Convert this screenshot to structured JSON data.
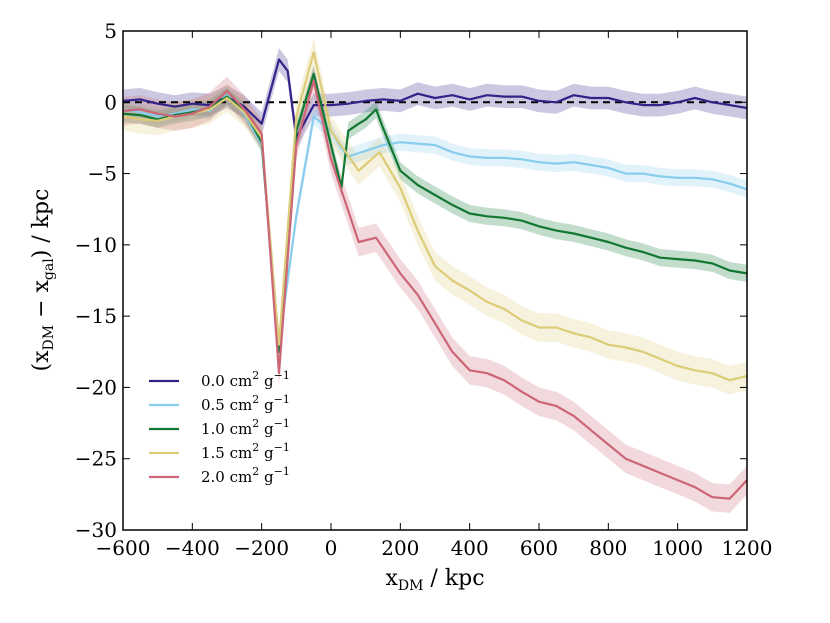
{
  "chart_data": {
    "type": "line",
    "title": "",
    "xlabel": "x_DM / kpc",
    "ylabel": "(x_DM − x_gal) / kpc",
    "xlabel_parts": {
      "main": "x",
      "sub": "DM",
      "unit": " / kpc"
    },
    "ylabel_parts": {
      "open": "(x",
      "sub1": "DM",
      "mid": " − x",
      "sub2": "gal",
      "close": ") / kpc"
    },
    "xlim": [
      -600,
      1200
    ],
    "ylim": [
      -30,
      5
    ],
    "xticks": [
      -600,
      -400,
      -200,
      0,
      200,
      400,
      600,
      800,
      1000,
      1200
    ],
    "yticks": [
      5,
      0,
      -5,
      -10,
      -15,
      -20,
      -25,
      -30
    ],
    "xtick_labels": [
      "−600",
      "−400",
      "−200",
      "0",
      "200",
      "400",
      "600",
      "800",
      "1000",
      "1200"
    ],
    "ytick_labels": [
      "5",
      "0",
      "−5",
      "−10",
      "−15",
      "−20",
      "−25",
      "−30"
    ],
    "reference_line": {
      "y": 0,
      "style": "dashed",
      "color": "#000000"
    },
    "legend_position": "lower-left",
    "legend_unit": {
      "number_suffix": " cm",
      "sup1": "2",
      "g": " g",
      "sup2": "−1"
    },
    "series": [
      {
        "name": "0.0 cm² g⁻¹",
        "number": "0.0",
        "color": "#332288",
        "band_half_width": 0.8,
        "x": [
          -600,
          -550,
          -500,
          -450,
          -400,
          -350,
          -300,
          -250,
          -200,
          -150,
          -125,
          -100,
          -50,
          0,
          50,
          100,
          150,
          200,
          250,
          300,
          350,
          400,
          450,
          500,
          550,
          600,
          650,
          700,
          750,
          800,
          850,
          900,
          950,
          1000,
          1050,
          1100,
          1150,
          1200
        ],
        "y": [
          0.1,
          0.2,
          -0.1,
          -0.3,
          -0.1,
          -0.2,
          0.4,
          -0.3,
          -1.5,
          3.0,
          2.2,
          -2.5,
          -0.2,
          -0.2,
          -0.1,
          0.1,
          0.2,
          0.1,
          0.6,
          0.3,
          0.5,
          0.2,
          0.5,
          0.4,
          0.4,
          0.1,
          0.0,
          0.5,
          0.3,
          0.3,
          0.0,
          -0.2,
          -0.2,
          0.0,
          0.3,
          0.0,
          -0.2,
          -0.4
        ]
      },
      {
        "name": "0.5 cm² g⁻¹",
        "number": "0.5",
        "color": "#88CCEE",
        "band_half_width": 0.6,
        "x": [
          -600,
          -550,
          -500,
          -450,
          -400,
          -350,
          -300,
          -250,
          -200,
          -150,
          -100,
          -50,
          0,
          30,
          50,
          100,
          150,
          200,
          250,
          300,
          350,
          400,
          450,
          500,
          550,
          600,
          650,
          700,
          750,
          800,
          850,
          900,
          950,
          1000,
          1050,
          1100,
          1150,
          1200
        ],
        "y": [
          -0.5,
          -0.7,
          -1.0,
          -0.8,
          -0.5,
          -0.6,
          0.5,
          -0.8,
          -3.0,
          -17.0,
          -8.0,
          -1.0,
          -2.0,
          -3.2,
          -3.8,
          -3.4,
          -3.0,
          -2.8,
          -2.9,
          -3.0,
          -3.5,
          -3.8,
          -3.9,
          -3.9,
          -4.0,
          -4.2,
          -4.3,
          -4.2,
          -4.4,
          -4.6,
          -5.0,
          -5.0,
          -5.2,
          -5.3,
          -5.3,
          -5.4,
          -5.7,
          -6.1
        ]
      },
      {
        "name": "1.0 cm² g⁻¹",
        "number": "1.0",
        "color": "#117733",
        "band_half_width": 0.6,
        "x": [
          -600,
          -550,
          -500,
          -450,
          -400,
          -350,
          -300,
          -250,
          -200,
          -150,
          -100,
          -50,
          0,
          30,
          50,
          80,
          100,
          130,
          150,
          200,
          250,
          300,
          350,
          400,
          450,
          500,
          550,
          600,
          650,
          700,
          750,
          800,
          850,
          900,
          950,
          1000,
          1050,
          1100,
          1150,
          1200
        ],
        "y": [
          -0.8,
          -0.9,
          -1.2,
          -0.9,
          -0.7,
          -0.4,
          0.4,
          -0.6,
          -2.8,
          -17.5,
          -2.0,
          2.0,
          -3.0,
          -6.0,
          -2.0,
          -1.5,
          -1.2,
          -0.5,
          -1.8,
          -4.8,
          -5.8,
          -6.5,
          -7.2,
          -7.8,
          -8.0,
          -8.1,
          -8.3,
          -8.7,
          -9.0,
          -9.2,
          -9.5,
          -9.8,
          -10.2,
          -10.5,
          -10.9,
          -11.0,
          -11.1,
          -11.3,
          -11.8,
          -12.0
        ]
      },
      {
        "name": "1.5 cm² g⁻¹",
        "number": "1.5",
        "color": "#DDCC77",
        "band_half_width": 1.0,
        "x": [
          -600,
          -550,
          -500,
          -450,
          -400,
          -350,
          -300,
          -250,
          -200,
          -150,
          -100,
          -50,
          0,
          80,
          140,
          200,
          250,
          300,
          350,
          400,
          450,
          500,
          550,
          600,
          650,
          700,
          750,
          800,
          850,
          900,
          950,
          1000,
          1050,
          1100,
          1150,
          1200
        ],
        "y": [
          -1.0,
          -1.2,
          -1.3,
          -1.0,
          -0.8,
          -0.5,
          0.3,
          -0.7,
          -2.5,
          -17.0,
          -1.0,
          3.5,
          -2.0,
          -4.8,
          -3.5,
          -6.0,
          -9.0,
          -11.5,
          -12.5,
          -13.2,
          -14.0,
          -14.5,
          -15.3,
          -15.8,
          -15.8,
          -16.2,
          -16.5,
          -17.0,
          -17.2,
          -17.5,
          -18.0,
          -18.5,
          -18.8,
          -19.0,
          -19.5,
          -19.2
        ]
      },
      {
        "name": "2.0 cm² g⁻¹",
        "number": "2.0",
        "color": "#CC6677",
        "band_half_width": 1.0,
        "x": [
          -600,
          -550,
          -500,
          -450,
          -400,
          -350,
          -300,
          -250,
          -200,
          -150,
          -100,
          -50,
          0,
          80,
          130,
          200,
          250,
          300,
          350,
          400,
          450,
          500,
          550,
          600,
          650,
          700,
          750,
          800,
          850,
          900,
          950,
          1000,
          1050,
          1100,
          1150,
          1200
        ],
        "y": [
          -0.6,
          -0.5,
          -0.8,
          -1.0,
          -0.8,
          -0.3,
          0.8,
          -0.5,
          -2.2,
          -19.0,
          -3.0,
          1.5,
          -4.0,
          -9.8,
          -9.5,
          -12.0,
          -13.5,
          -15.5,
          -17.5,
          -18.8,
          -19.0,
          -19.5,
          -20.3,
          -21.0,
          -21.3,
          -22.0,
          -23.0,
          -24.0,
          -25.0,
          -25.5,
          -26.0,
          -26.5,
          -27.0,
          -27.7,
          -27.8,
          -26.5
        ]
      }
    ]
  }
}
